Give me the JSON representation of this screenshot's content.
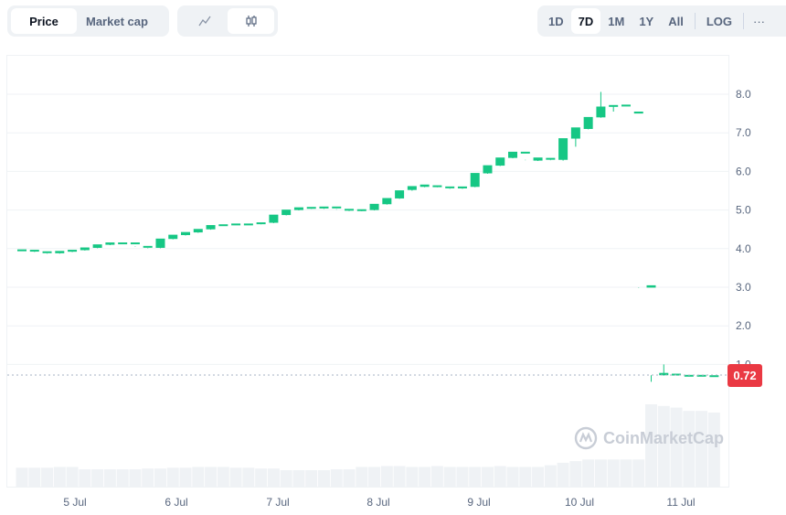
{
  "toolbar": {
    "metric_tabs": [
      {
        "label": "Price",
        "active": true
      },
      {
        "label": "Market cap",
        "active": false
      }
    ],
    "chart_types": [
      {
        "icon": "line-chart-icon",
        "active": false
      },
      {
        "icon": "candlestick-icon",
        "active": true
      }
    ],
    "ranges": [
      {
        "label": "1D",
        "active": false
      },
      {
        "label": "7D",
        "active": true
      },
      {
        "label": "1M",
        "active": false
      },
      {
        "label": "1Y",
        "active": false
      },
      {
        "label": "All",
        "active": false
      }
    ],
    "log_label": "LOG",
    "more_label": "···"
  },
  "current_price": "0.72",
  "watermark": "CoinMarketCap",
  "colors": {
    "up": "#16c784",
    "down": "#ea3943",
    "volume": "#eff2f5",
    "grid": "#eff2f5"
  },
  "chart_data": {
    "type": "candlestick",
    "y_ticks": [
      "1.0",
      "2.0",
      "3.0",
      "4.0",
      "5.0",
      "6.0",
      "7.0",
      "8.0"
    ],
    "ylim": [
      0.5,
      9
    ],
    "x_ticks": [
      "5 Jul",
      "6 Jul",
      "7 Jul",
      "8 Jul",
      "9 Jul",
      "10 Jul",
      "11 Jul"
    ],
    "grid": true,
    "candles": [
      [
        3.97,
        3.98,
        3.96,
        3.97
      ],
      [
        3.96,
        3.97,
        3.91,
        3.92
      ],
      [
        3.92,
        3.93,
        3.87,
        3.88
      ],
      [
        3.88,
        3.94,
        3.87,
        3.92
      ],
      [
        3.92,
        3.97,
        3.91,
        3.96
      ],
      [
        3.96,
        4.03,
        3.95,
        4.02
      ],
      [
        4.02,
        4.11,
        4.01,
        4.1
      ],
      [
        4.1,
        4.16,
        4.09,
        4.15
      ],
      [
        4.15,
        4.16,
        4.14,
        4.15
      ],
      [
        4.15,
        4.16,
        4.05,
        4.06
      ],
      [
        4.06,
        4.07,
        4.01,
        4.02
      ],
      [
        4.02,
        4.26,
        4.01,
        4.25
      ],
      [
        4.25,
        4.36,
        4.24,
        4.35
      ],
      [
        4.35,
        4.43,
        4.34,
        4.42
      ],
      [
        4.42,
        4.51,
        4.41,
        4.5
      ],
      [
        4.5,
        4.61,
        4.49,
        4.6
      ],
      [
        4.61,
        4.63,
        4.6,
        4.62
      ],
      [
        4.62,
        4.65,
        4.61,
        4.64
      ],
      [
        4.64,
        4.65,
        4.63,
        4.64
      ],
      [
        4.64,
        4.68,
        4.63,
        4.67
      ],
      [
        4.67,
        4.88,
        4.66,
        4.87
      ],
      [
        4.87,
        5.01,
        4.86,
        5.0
      ],
      [
        5.0,
        5.07,
        4.99,
        5.06
      ],
      [
        5.06,
        5.08,
        5.03,
        5.04
      ],
      [
        5.04,
        5.09,
        5.03,
        5.08
      ],
      [
        5.08,
        5.09,
        5.01,
        5.02
      ],
      [
        5.02,
        5.03,
        4.97,
        4.98
      ],
      [
        4.98,
        5.02,
        4.97,
        5.0
      ],
      [
        5.0,
        5.16,
        4.99,
        5.15
      ],
      [
        5.15,
        5.31,
        5.14,
        5.3
      ],
      [
        5.3,
        5.51,
        5.29,
        5.5
      ],
      [
        5.52,
        5.62,
        5.5,
        5.6
      ],
      [
        5.6,
        5.66,
        5.59,
        5.63
      ],
      [
        5.63,
        5.64,
        5.59,
        5.6
      ],
      [
        5.6,
        5.61,
        5.55,
        5.56
      ],
      [
        5.56,
        5.61,
        5.55,
        5.6
      ],
      [
        5.6,
        5.96,
        5.59,
        5.95
      ],
      [
        5.95,
        6.16,
        5.94,
        6.15
      ],
      [
        6.15,
        6.36,
        6.14,
        6.35
      ],
      [
        6.35,
        6.51,
        6.34,
        6.5
      ],
      [
        6.5,
        6.51,
        6.29,
        6.3
      ],
      [
        6.28,
        6.36,
        6.27,
        6.33
      ],
      [
        6.33,
        6.35,
        6.29,
        6.3
      ],
      [
        6.3,
        6.86,
        6.28,
        6.85
      ],
      [
        6.85,
        7.14,
        6.64,
        7.12
      ],
      [
        7.1,
        7.41,
        7.09,
        7.4
      ],
      [
        7.4,
        7.68,
        7.39,
        8.06,
        true
      ],
      [
        7.68,
        7.72,
        7.55,
        7.7
      ],
      [
        7.72,
        7.73,
        7.5,
        7.5
      ],
      [
        7.5,
        7.55,
        2.98,
        2.99
      ],
      [
        2.99,
        3.05,
        0.55,
        0.72
      ],
      [
        0.72,
        0.78,
        0.71,
        1.0,
        true
      ],
      [
        0.75,
        0.76,
        0.73,
        0.74
      ],
      [
        0.73,
        0.73,
        0.71,
        0.72
      ],
      [
        0.72,
        0.73,
        0.71,
        0.72
      ],
      [
        0.72,
        0.72,
        0.71,
        0.71
      ]
    ],
    "candle_format": "open, close, low, high",
    "volume_relative": [
      23,
      23,
      23,
      24,
      24,
      21,
      21,
      21,
      21,
      21,
      22,
      22,
      23,
      23,
      24,
      24,
      24,
      23,
      23,
      22,
      22,
      20,
      20,
      20,
      20,
      21,
      21,
      24,
      24,
      25,
      25,
      24,
      24,
      25,
      24,
      24,
      24,
      24,
      25,
      24,
      24,
      24,
      26,
      29,
      31,
      33,
      33,
      33,
      33,
      33,
      100,
      98,
      96,
      92,
      92,
      90
    ]
  }
}
